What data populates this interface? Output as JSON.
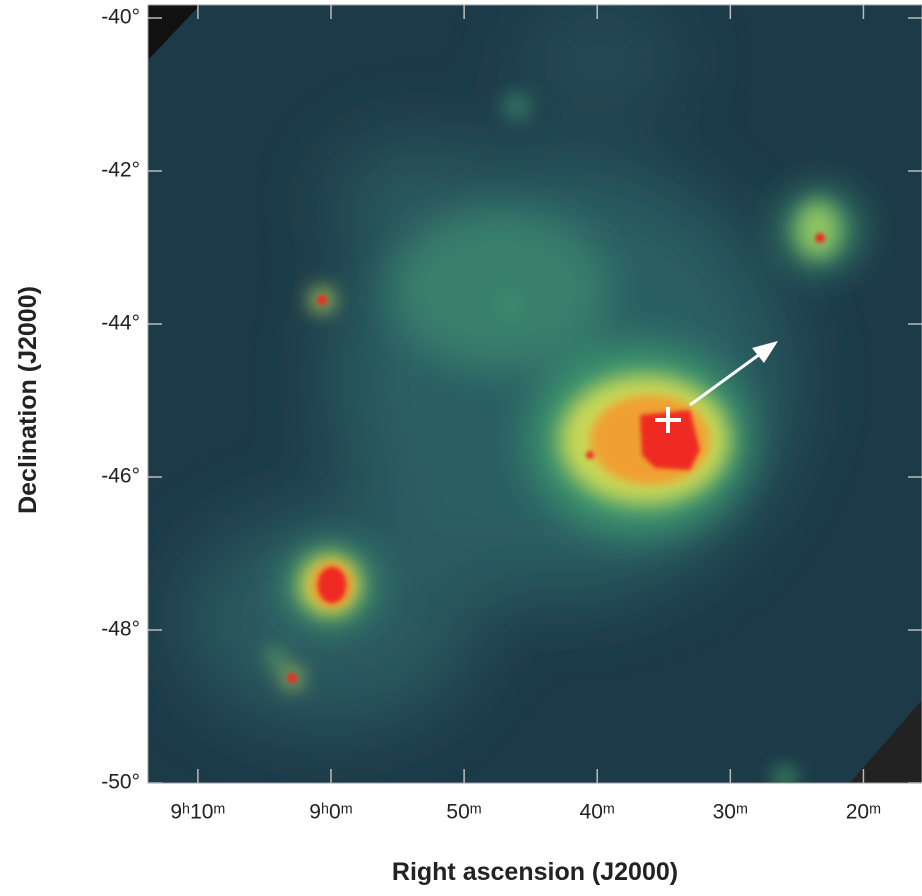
{
  "chart_data": {
    "type": "image",
    "xlabel": "Right ascension (J2000)",
    "ylabel": "Declination (J2000)",
    "xlim": [
      553.75,
      495.6
    ],
    "ylim": [
      -50,
      -39.83
    ],
    "xticks": [
      {
        "value": 550,
        "label": "9ʰ10ᵐ"
      },
      {
        "value": 540,
        "label": "9ʰ0ᵐ"
      },
      {
        "value": 530,
        "label": "50ᵐ"
      },
      {
        "value": 520,
        "label": "40ᵐ"
      },
      {
        "value": 510,
        "label": "30ᵐ"
      },
      {
        "value": 500,
        "label": "20ᵐ"
      }
    ],
    "yticks": [
      {
        "value": -40,
        "label": "-40°"
      },
      {
        "value": -42,
        "label": "-42°"
      },
      {
        "value": -44,
        "label": "-44°"
      },
      {
        "value": -46,
        "label": "-46°"
      },
      {
        "value": -48,
        "label": "-48°"
      },
      {
        "value": -50,
        "label": "-50°"
      }
    ]
  }
}
